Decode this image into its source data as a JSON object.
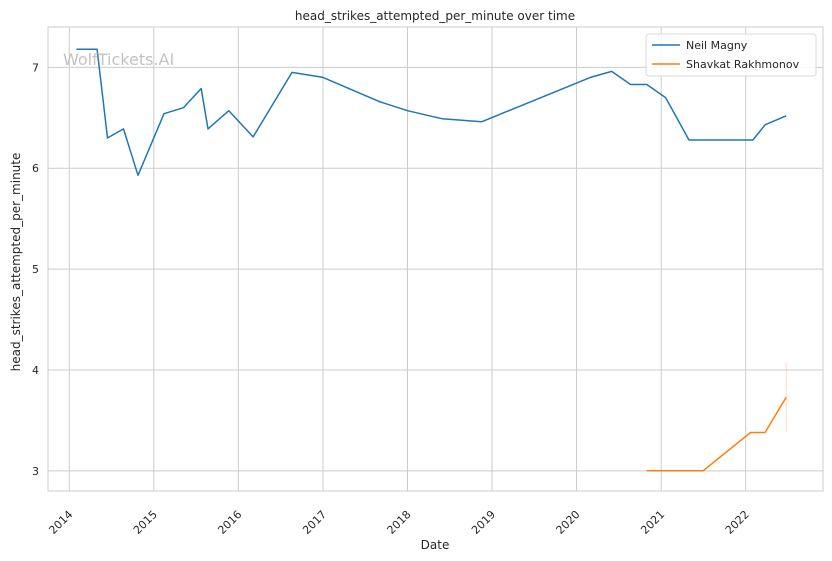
{
  "chart_data": {
    "type": "line",
    "title": "head_strikes_attempted_per_minute over time",
    "xlabel": "Date",
    "ylabel": "head_strikes_attempted_per_minute",
    "watermark": "WolfTickets.AI",
    "xlim": [
      "2013-10-01",
      "2022-12-01"
    ],
    "ylim": [
      2.8,
      7.4
    ],
    "x_ticks": [
      "2014",
      "2015",
      "2016",
      "2017",
      "2018",
      "2019",
      "2020",
      "2021",
      "2022"
    ],
    "y_ticks": [
      3,
      4,
      5,
      6,
      7
    ],
    "grid": true,
    "legend_position": "top-right",
    "series": [
      {
        "name": "Neil Magny",
        "color": "#1f77b4",
        "points": [
          [
            "2014-02-01",
            7.18
          ],
          [
            "2014-05-01",
            7.18
          ],
          [
            "2014-06-15",
            6.3
          ],
          [
            "2014-08-23",
            6.39
          ],
          [
            "2014-10-25",
            5.93
          ],
          [
            "2015-02-14",
            6.54
          ],
          [
            "2015-05-09",
            6.6
          ],
          [
            "2015-07-25",
            6.79
          ],
          [
            "2015-08-23",
            6.39
          ],
          [
            "2015-11-21",
            6.57
          ],
          [
            "2016-03-05",
            6.31
          ],
          [
            "2016-08-20",
            6.95
          ],
          [
            "2017-01-01",
            6.9
          ],
          [
            "2017-09-01",
            6.66
          ],
          [
            "2018-01-01",
            6.57
          ],
          [
            "2018-06-01",
            6.49
          ],
          [
            "2018-11-17",
            6.46
          ],
          [
            "2020-03-01",
            6.9
          ],
          [
            "2020-06-01",
            6.96
          ],
          [
            "2020-08-22",
            6.83
          ],
          [
            "2020-10-31",
            6.83
          ],
          [
            "2021-01-20",
            6.7
          ],
          [
            "2021-05-01",
            6.28
          ],
          [
            "2022-02-01",
            6.28
          ],
          [
            "2022-03-26",
            6.43
          ],
          [
            "2022-06-25",
            6.52
          ]
        ]
      },
      {
        "name": "Shavkat Rakhmonov",
        "color": "#ff7f0e",
        "points": [
          [
            "2020-10-31",
            3.0
          ],
          [
            "2021-07-01",
            3.0
          ],
          [
            "2022-01-22",
            3.38
          ],
          [
            "2022-03-26",
            3.38
          ],
          [
            "2022-06-25",
            3.73
          ]
        ],
        "band_last": [
          3.38,
          4.08
        ]
      }
    ]
  }
}
